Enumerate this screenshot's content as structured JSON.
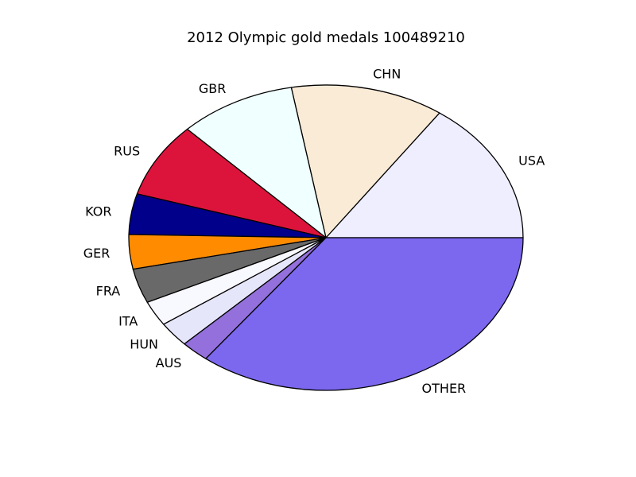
{
  "chart_data": {
    "type": "pie",
    "title": "2012 Olympic gold medals 100489210",
    "start_angle_deg": 0,
    "direction": "counterclockwise",
    "slices": [
      {
        "label": "USA",
        "value": 46,
        "color": "#eeeeff"
      },
      {
        "label": "CHN",
        "value": 38,
        "color": "#faebd7"
      },
      {
        "label": "GBR",
        "value": 29,
        "color": "#f0ffff"
      },
      {
        "label": "RUS",
        "value": 24,
        "color": "#dc143c"
      },
      {
        "label": "KOR",
        "value": 13,
        "color": "#00008b"
      },
      {
        "label": "GER",
        "value": 11,
        "color": "#ff8c00"
      },
      {
        "label": "FRA",
        "value": 11,
        "color": "#696969"
      },
      {
        "label": "ITA",
        "value": 8,
        "color": "#f8f8ff"
      },
      {
        "label": "HUN",
        "value": 8,
        "color": "#e6e6fa"
      },
      {
        "label": "AUS",
        "value": 7,
        "color": "#9370db"
      },
      {
        "label": "OTHER",
        "value": 107,
        "color": "#7b68ee"
      }
    ]
  }
}
